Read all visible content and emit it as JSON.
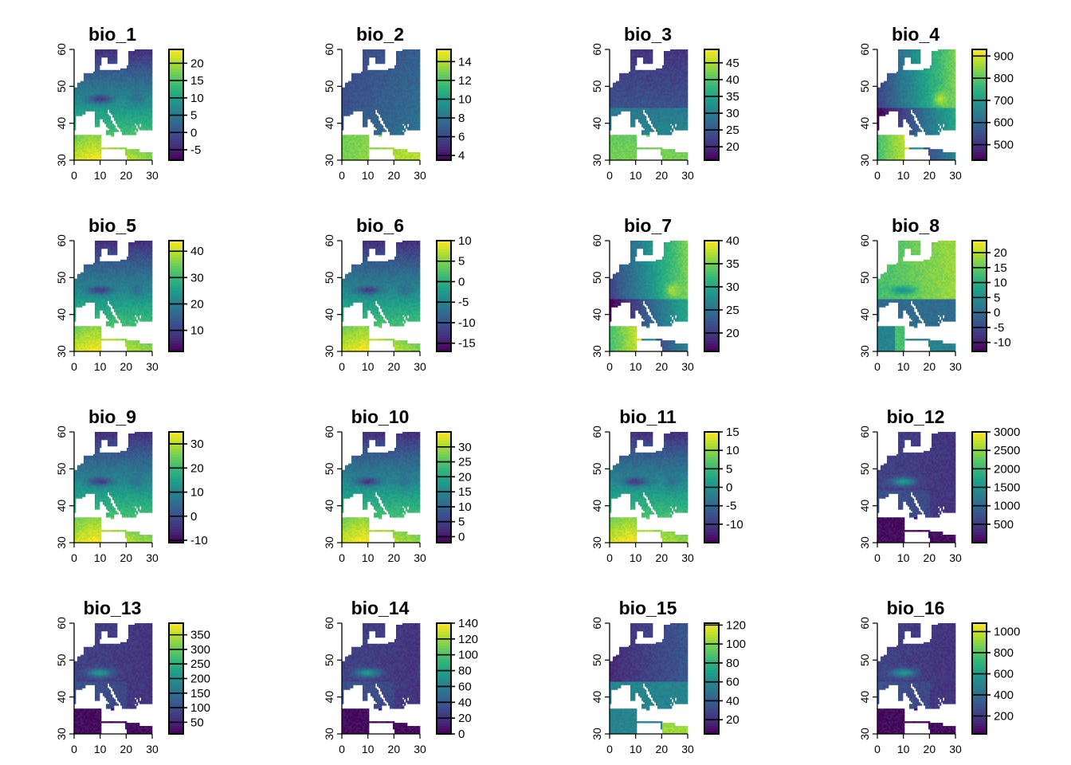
{
  "chart_data": {
    "type": "heatmap",
    "layout": "4x4 grid of raster maps",
    "x_axis": {
      "range": [
        0,
        30
      ],
      "ticks": [
        0,
        10,
        20,
        30
      ]
    },
    "y_axis": {
      "range": [
        30,
        60
      ],
      "ticks": [
        30,
        40,
        50,
        60
      ]
    },
    "colormap": "viridis",
    "panels": [
      {
        "title": "bio_1",
        "range": [
          -8,
          24
        ],
        "legend_ticks": [
          -5,
          0,
          5,
          10,
          15,
          20
        ],
        "pattern": "temp"
      },
      {
        "title": "bio_2",
        "range": [
          3.5,
          15.3
        ],
        "legend_ticks": [
          4,
          6,
          8,
          10,
          12,
          14
        ],
        "pattern": "range"
      },
      {
        "title": "bio_3",
        "range": [
          16,
          49
        ],
        "legend_ticks": [
          20,
          25,
          30,
          35,
          40,
          45
        ],
        "pattern": "iso"
      },
      {
        "title": "bio_4",
        "range": [
          430,
          930
        ],
        "legend_ticks": [
          500,
          600,
          700,
          800,
          900
        ],
        "pattern": "season"
      },
      {
        "title": "bio_5",
        "range": [
          2,
          44
        ],
        "legend_ticks": [
          10,
          20,
          30,
          40
        ],
        "pattern": "temp"
      },
      {
        "title": "bio_6",
        "range": [
          -17,
          10
        ],
        "legend_ticks": [
          -15,
          -10,
          -5,
          0,
          5,
          10
        ],
        "pattern": "temp"
      },
      {
        "title": "bio_7",
        "range": [
          16,
          40
        ],
        "legend_ticks": [
          20,
          25,
          30,
          35,
          40
        ],
        "pattern": "season"
      },
      {
        "title": "bio_8",
        "range": [
          -13,
          24
        ],
        "legend_ticks": [
          -10,
          -5,
          0,
          5,
          10,
          15,
          20
        ],
        "pattern": "wetq"
      },
      {
        "title": "bio_9",
        "range": [
          -11,
          35
        ],
        "legend_ticks": [
          -10,
          0,
          10,
          20,
          30
        ],
        "pattern": "temp"
      },
      {
        "title": "bio_10",
        "range": [
          -2,
          35
        ],
        "legend_ticks": [
          0,
          5,
          10,
          15,
          20,
          25,
          30
        ],
        "pattern": "temp"
      },
      {
        "title": "bio_11",
        "range": [
          -15,
          15
        ],
        "legend_ticks": [
          -10,
          -5,
          0,
          5,
          10,
          15
        ],
        "pattern": "temp"
      },
      {
        "title": "bio_12",
        "range": [
          0,
          3000
        ],
        "legend_ticks": [
          500,
          1000,
          1500,
          2000,
          2500,
          3000
        ],
        "pattern": "precip"
      },
      {
        "title": "bio_13",
        "range": [
          10,
          390
        ],
        "legend_ticks": [
          50,
          100,
          150,
          200,
          250,
          300,
          350
        ],
        "pattern": "precip"
      },
      {
        "title": "bio_14",
        "range": [
          0,
          140
        ],
        "legend_ticks": [
          0,
          20,
          40,
          60,
          80,
          100,
          120,
          140
        ],
        "pattern": "precip"
      },
      {
        "title": "bio_15",
        "range": [
          5,
          122
        ],
        "legend_ticks": [
          20,
          40,
          60,
          80,
          100,
          120
        ],
        "pattern": "pseason"
      },
      {
        "title": "bio_16",
        "range": [
          30,
          1080
        ],
        "legend_ticks": [
          200,
          400,
          600,
          800,
          1000
        ],
        "pattern": "precip"
      }
    ]
  }
}
